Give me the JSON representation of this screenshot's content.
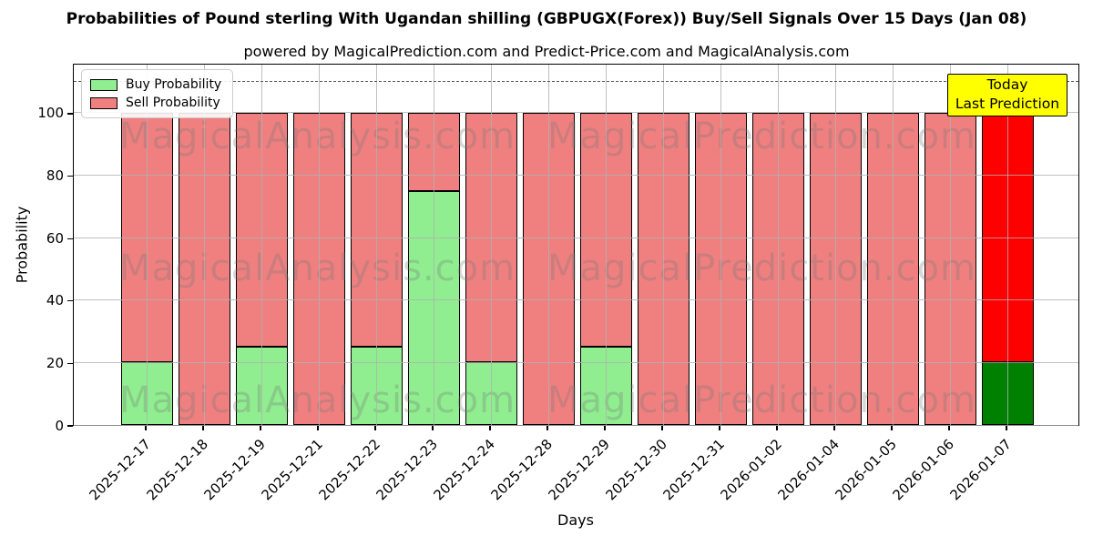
{
  "header": {
    "title": "Probabilities of Pound sterling With Ugandan shilling (GBPUGX(Forex)) Buy/Sell Signals Over 15 Days (Jan 08)",
    "subtitle": "powered by MagicalPrediction.com and Predict-Price.com and MagicalAnalysis.com"
  },
  "legend": [
    {
      "label": "Buy Probability",
      "color": "#90EE90"
    },
    {
      "label": "Sell Probability",
      "color": "#F08080"
    }
  ],
  "annotation": {
    "line1": "Today",
    "line2": "Last Prediction",
    "bg_color": "#FFFF00"
  },
  "watermarks": {
    "left_text": "MagicalAnalysis.com",
    "right_text": "MagicalPrediction.com"
  },
  "chart_data": {
    "type": "bar",
    "stacked": true,
    "title": "Probabilities of Pound sterling With Ugandan shilling (GBPUGX(Forex)) Buy/Sell Signals Over 15 Days (Jan 08)",
    "xlabel": "Days",
    "ylabel": "Probability",
    "ylim": [
      0,
      116
    ],
    "yticks": [
      0,
      20,
      40,
      60,
      80,
      100
    ],
    "grid": true,
    "legend_position": "upper left",
    "dashed_line_y": 110,
    "categories": [
      "2025-12-17",
      "2025-12-18",
      "2025-12-19",
      "2025-12-21",
      "2025-12-22",
      "2025-12-23",
      "2025-12-24",
      "2025-12-28",
      "2025-12-29",
      "2025-12-30",
      "2025-12-31",
      "2026-01-02",
      "2026-01-04",
      "2026-01-05",
      "2026-01-06",
      "2026-01-07"
    ],
    "series": [
      {
        "name": "Buy Probability",
        "color": "#90EE90",
        "today_color": "#008000",
        "values": [
          20,
          0,
          25,
          0,
          25,
          75,
          20,
          0,
          25,
          0,
          0,
          0,
          0,
          0,
          0,
          20
        ]
      },
      {
        "name": "Sell Probability",
        "color": "#F08080",
        "today_color": "#FF0000",
        "values": [
          80,
          100,
          75,
          100,
          75,
          25,
          80,
          100,
          75,
          100,
          100,
          100,
          100,
          100,
          100,
          80
        ]
      }
    ],
    "today_index": 15
  }
}
